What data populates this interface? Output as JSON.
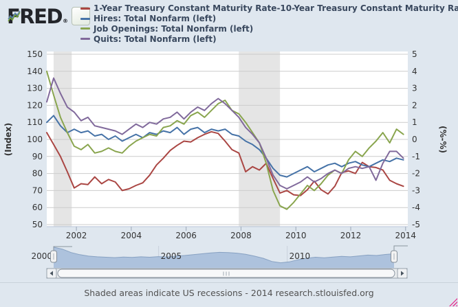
{
  "header": {
    "logo_text": "FRED",
    "logo_registered": "®",
    "legend": [
      {
        "label": "1-Year Treasury Constant Maturity Rate-10-Year Treasury Constant Maturity Rate (right)",
        "color": "#AA4643"
      },
      {
        "label": "Hires: Total Nonfarm (left)",
        "color": "#4572A7"
      },
      {
        "label": "Job Openings: Total Nonfarm (left)",
        "color": "#89A54E"
      },
      {
        "label": "Quits: Total Nonfarm (left)",
        "color": "#80699B"
      }
    ]
  },
  "chart_data": {
    "type": "line",
    "grid": true,
    "left_axis": {
      "title": "(Index)",
      "ticks": [
        150,
        140,
        130,
        120,
        110,
        100,
        90,
        80,
        70,
        60,
        50
      ],
      "range": [
        50,
        150
      ]
    },
    "right_axis": {
      "title": "(%-%)",
      "ticks": [
        5,
        4,
        3,
        2,
        1,
        0,
        -1,
        -2,
        -3,
        -4,
        -5
      ],
      "range": [
        -5,
        5
      ]
    },
    "x_axis": {
      "ticks": [
        2002,
        2004,
        2006,
        2008,
        2010,
        2012,
        2014
      ],
      "range": [
        2000.92,
        2014.08
      ]
    },
    "recessions": [
      {
        "start": 2001.17,
        "end": 2001.83
      },
      {
        "start": 2007.92,
        "end": 2009.42
      }
    ],
    "x_start": 2000.92,
    "x_step": 0.25,
    "series": [
      {
        "name": "1-Year Treasury Constant Maturity Rate-10-Year Treasury Constant Maturity Rate",
        "axis": "right",
        "color": "#AA4643",
        "values": [
          0.4,
          -0.3,
          -1.0,
          -1.9,
          -2.85,
          -2.6,
          -2.65,
          -2.2,
          -2.6,
          -2.35,
          -2.5,
          -3.0,
          -2.9,
          -2.7,
          -2.55,
          -2.1,
          -1.5,
          -1.1,
          -0.65,
          -0.35,
          -0.1,
          -0.15,
          0.1,
          0.3,
          0.45,
          0.35,
          -0.1,
          -0.6,
          -0.8,
          -1.9,
          -1.6,
          -1.8,
          -1.4,
          -2.3,
          -3.15,
          -3.0,
          -3.25,
          -3.3,
          -2.95,
          -2.45,
          -2.95,
          -3.2,
          -2.75,
          -1.95,
          -1.85,
          -2.0,
          -1.35,
          -1.6,
          -1.65,
          -1.8,
          -2.4,
          -2.6,
          -2.75
        ]
      },
      {
        "name": "Hires: Total Nonfarm",
        "axis": "left",
        "color": "#4572A7",
        "values": [
          110,
          114,
          108,
          104,
          106,
          104,
          105,
          102,
          103,
          100,
          102,
          99,
          101,
          103,
          101,
          104,
          103,
          105,
          104,
          107,
          103,
          106,
          107,
          104,
          106,
          105,
          106,
          103,
          102,
          99,
          97,
          94,
          89,
          83,
          79,
          78,
          80,
          82,
          84,
          81,
          83,
          85,
          86,
          84,
          86,
          87,
          85,
          84,
          86,
          88,
          87,
          89,
          88
        ]
      },
      {
        "name": "Job Openings: Total Nonfarm",
        "axis": "left",
        "color": "#89A54E",
        "values": [
          140,
          126,
          113,
          104,
          96,
          94,
          97,
          92,
          93,
          95,
          93,
          92,
          96,
          99,
          101,
          103,
          102,
          107,
          108,
          111,
          109,
          114,
          116,
          113,
          117,
          121,
          123,
          117,
          115,
          110,
          104,
          98,
          86,
          70,
          61,
          59,
          63,
          68,
          73,
          70,
          74,
          79,
          82,
          80,
          88,
          93,
          90,
          95,
          99,
          104,
          98,
          106,
          103
        ]
      },
      {
        "name": "Quits: Total Nonfarm",
        "axis": "left",
        "color": "#80699B",
        "values": [
          122,
          136,
          127,
          119,
          116,
          111,
          113,
          108,
          107,
          106,
          105,
          103,
          106,
          109,
          107,
          110,
          109,
          112,
          113,
          116,
          112,
          116,
          119,
          117,
          121,
          124,
          121,
          117,
          113,
          107,
          103,
          98,
          89,
          79,
          73,
          71,
          73,
          75,
          78,
          75,
          77,
          80,
          82,
          80,
          83,
          84,
          83,
          84,
          76,
          86,
          93,
          93,
          89
        ]
      }
    ]
  },
  "navigator": {
    "year_labels": [
      2000,
      2005,
      2010
    ],
    "gridline_years": [
      2005,
      2010
    ],
    "fill": "#adc2dd",
    "line": "#87a1c2",
    "values": [
      0.97,
      0.88,
      0.72,
      0.62,
      0.55,
      0.52,
      0.5,
      0.48,
      0.51,
      0.49,
      0.52,
      0.5,
      0.53,
      0.51,
      0.55,
      0.58,
      0.62,
      0.66,
      0.7,
      0.73,
      0.72,
      0.69,
      0.64,
      0.55,
      0.45,
      0.3,
      0.24,
      0.28,
      0.38,
      0.45,
      0.5,
      0.47,
      0.51,
      0.54,
      0.52,
      0.56,
      0.6,
      0.58,
      0.63,
      0.66
    ]
  },
  "footer": {
    "text": "Shaded areas indicate US recessions - 2014 research.stlouisfed.org"
  }
}
